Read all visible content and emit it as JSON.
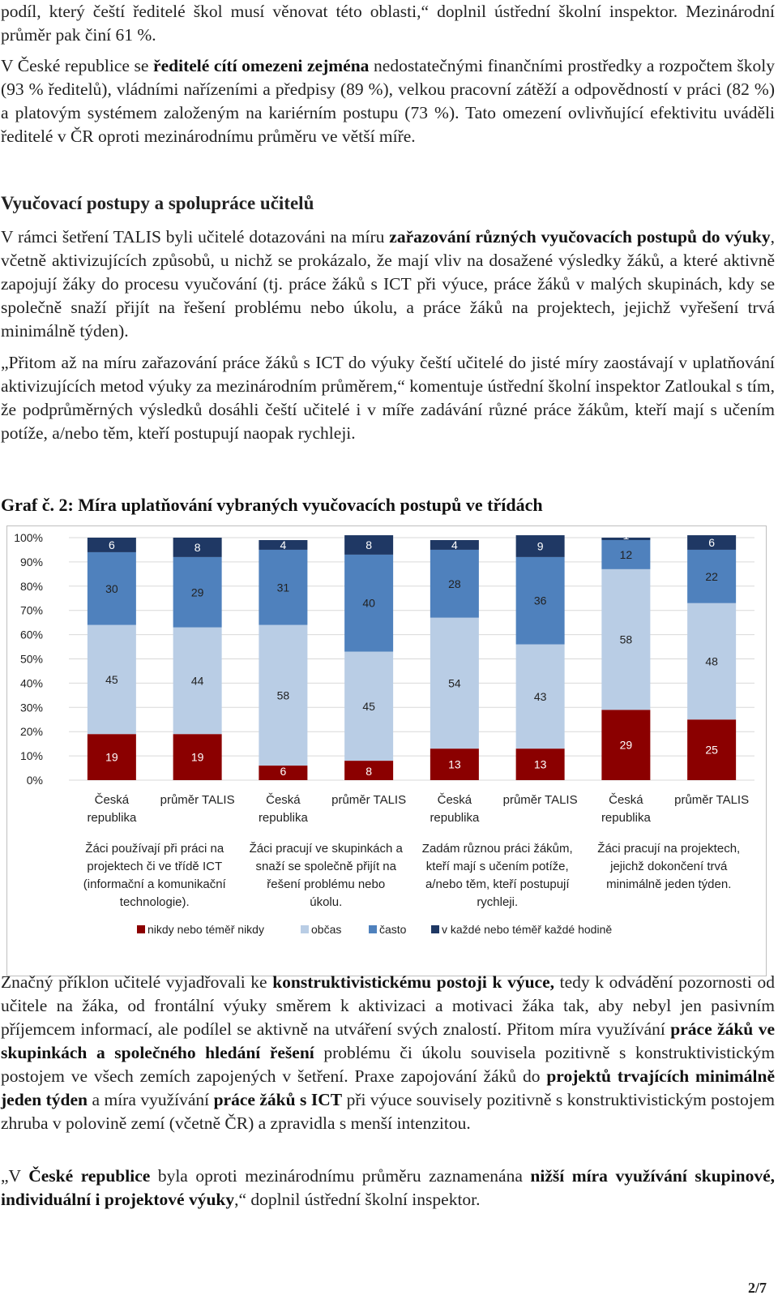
{
  "paragraphs": {
    "p0": {
      "segments": [
        {
          "t": "podíl, který čeští ředitelé škol musí věnovat této oblasti,“ doplnil ústřední školní inspektor. Mezinárodní průměr pak činí 61 %."
        }
      ]
    },
    "p1": {
      "segments": [
        {
          "t": "V České republice se "
        },
        {
          "t": "ředitelé cítí omezeni zejména",
          "b": true
        },
        {
          "t": " nedostatečnými finančními prostředky a rozpočtem školy (93 % ředitelů), vládními nařízeními a předpisy (89 %), velkou pracovní zátěží a odpovědností v práci (82 %) a platovým systémem založeným na kariérním postupu (73 %). Tato omezení ovlivňující efektivitu uváděli ředitelé v ČR oproti mezinárodnímu průměru ve větší míře."
        }
      ]
    },
    "p2": {
      "segments": [
        {
          "t": "V rámci šetření TALIS byli učitelé dotazováni na míru "
        },
        {
          "t": "zařazování různých vyučovacích postupů do výuky",
          "b": true
        },
        {
          "t": ", včetně aktivizujících způsobů, u nichž se prokázalo, že mají vliv na dosažené výsledky žáků, a které aktivně zapojují žáky do procesu vyučování (tj. práce žáků s ICT při výuce, práce žáků v malých skupinách, kdy se společně snaží přijít na řešení problému nebo úkolu, a práce žáků na projektech, jejichž vyřešení trvá minimálně týden)."
        }
      ]
    },
    "p3": {
      "segments": [
        {
          "t": "„Přitom až na míru zařazování práce žáků s ICT do výuky čeští učitelé do jisté míry zaostávají v uplatňování aktivizujících metod výuky za mezinárodním průměrem,“ komentuje ústřední školní inspektor Zatloukal s tím, že podprůměrných výsledků dosáhli čeští učitelé i v míře zadávání různé práce žákům, kteří mají s učením potíže, a/nebo těm, kteří postupují naopak rychleji."
        }
      ]
    },
    "p4": {
      "segments": [
        {
          "t": "Značný příklon učitelé vyjadřovali ke "
        },
        {
          "t": "konstruktivistickému postoji k výuce,",
          "b": true
        },
        {
          "t": " tedy k odvádění pozornosti od učitele na žáka, od frontální výuky směrem k aktivizaci a motivaci žáka tak, aby nebyl jen pasivním příjemcem informací, ale podílel se aktivně na utváření svých znalostí. Přitom míra využívání "
        },
        {
          "t": "práce žáků ve skupinkách a společného hledání řešení",
          "b": true
        },
        {
          "t": " problému či úkolu souvisela pozitivně s konstruktivistickým postojem ve všech zemích zapojených v šetření. Praxe zapojování žáků do "
        },
        {
          "t": "projektů trvajících minimálně jeden týden",
          "b": true
        },
        {
          "t": " a míra využívání "
        },
        {
          "t": "práce žáků s ICT",
          "b": true
        },
        {
          "t": " při výuce souvisely pozitivně s konstruktivistickým postojem zhruba v polovině zemí (včetně ČR) a zpravidla s menší intenzitou."
        }
      ]
    },
    "p5": {
      "segments": [
        {
          "t": "„V "
        },
        {
          "t": "České republice",
          "b": true
        },
        {
          "t": " byla oproti mezinárodnímu průměru zaznamenána "
        },
        {
          "t": "nižší míra využívání skupinové, individuální i projektové výuky",
          "b": true
        },
        {
          "t": ",“ doplnil ústřední školní inspektor."
        }
      ]
    }
  },
  "section_heading": "Vyučovací postupy a spolupráce učitelů",
  "graf_title": "Graf č. 2:  Míra uplatňování vybraných vyučovacích postupů ve třídách",
  "page_number": "2/7",
  "chart_data": {
    "type": "bar",
    "stacked": true,
    "ylim": [
      0,
      100
    ],
    "yticks": [
      "0%",
      "10%",
      "20%",
      "30%",
      "40%",
      "50%",
      "60%",
      "70%",
      "80%",
      "90%",
      "100%"
    ],
    "categories": [
      [
        "Česká",
        "republika"
      ],
      [
        "průměr TALIS"
      ],
      [
        "Česká",
        "republika"
      ],
      [
        "průměr TALIS"
      ],
      [
        "Česká",
        "republika"
      ],
      [
        "průměr TALIS"
      ],
      [
        "Česká",
        "republika"
      ],
      [
        "průměr TALIS"
      ]
    ],
    "groups": [
      [
        "Žáci používají při práci na",
        "projektech či ve třídě ICT",
        "(informační a komunikační",
        "technologie)."
      ],
      [
        "Žáci pracují ve skupinkách a",
        "snaží se společně přijít na",
        "řešení problému nebo",
        "úkolu."
      ],
      [
        "Zadám různou práci žákům,",
        "kteří mají s učením potíže,",
        "a/nebo těm, kteří postupují",
        "rychleji."
      ],
      [
        "Žáci pracují na projektech,",
        "jejichž dokončení trvá",
        "minimálně jeden týden."
      ]
    ],
    "series": [
      {
        "name": "nikdy nebo téměř nikdy",
        "color": "#8b0000",
        "values": [
          19,
          19,
          6,
          8,
          13,
          13,
          29,
          25
        ]
      },
      {
        "name": "občas",
        "color": "#b9cde5",
        "values": [
          45,
          44,
          58,
          45,
          54,
          43,
          58,
          48
        ]
      },
      {
        "name": "často",
        "color": "#4f81bd",
        "values": [
          30,
          29,
          31,
          40,
          28,
          36,
          12,
          22
        ]
      },
      {
        "name": "v každé nebo téměř každé hodině",
        "color": "#1f3864",
        "values": [
          6,
          8,
          4,
          8,
          4,
          9,
          1,
          6
        ]
      }
    ],
    "grid": true,
    "legend": "bottom"
  }
}
